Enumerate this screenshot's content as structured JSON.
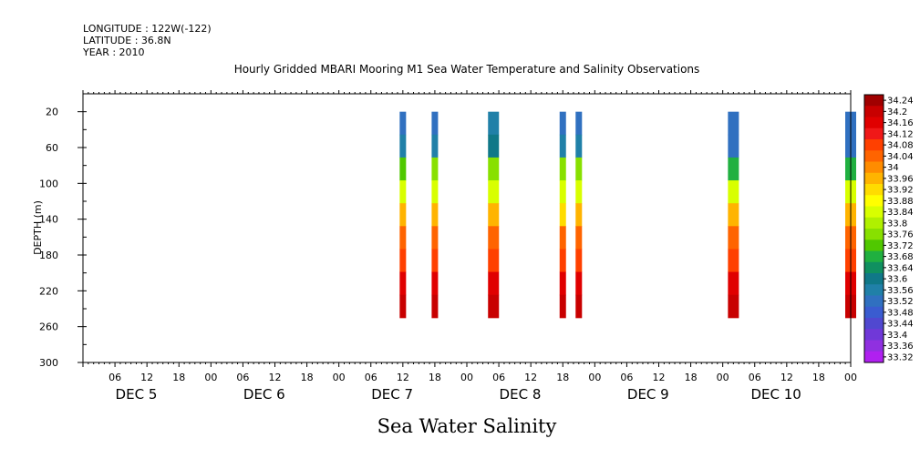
{
  "header": {
    "longitude": "LONGITUDE : 122W(-122)",
    "latitude": "LATITUDE : 36.8N",
    "year": "YEAR : 2010"
  },
  "chart_data": {
    "type": "heatmap",
    "title": "Hourly Gridded MBARI Mooring M1 Sea Water Temperature and Salinity Observations",
    "ylabel": "DEPTH (m)",
    "xlabel": "",
    "bottom_label": "Sea Water Salinity",
    "ylim": [
      300,
      0
    ],
    "y_ticks": [
      20,
      60,
      100,
      140,
      180,
      220,
      260,
      300
    ],
    "x_range_hours": [
      0,
      144
    ],
    "x_hour_ticks": [
      "06",
      "12",
      "18",
      "00",
      "06",
      "12",
      "18",
      "00",
      "06",
      "12",
      "18",
      "00",
      "06",
      "12",
      "18",
      "00",
      "06",
      "12",
      "18",
      "00",
      "06",
      "12",
      "18",
      "00"
    ],
    "x_date_labels": [
      "DEC  5",
      "DEC  6",
      "DEC  7",
      "DEC  8",
      "DEC  9",
      "DEC  10"
    ],
    "depth_range": [
      20,
      250
    ],
    "profiles": [
      {
        "time": "DEC 7 12",
        "salinity": [
          33.5,
          33.56,
          33.72,
          33.86,
          33.96,
          34.02,
          34.08,
          34.16,
          34.22
        ]
      },
      {
        "time": "DEC 7 18",
        "salinity": [
          33.5,
          33.58,
          33.74,
          33.86,
          33.96,
          34.02,
          34.08,
          34.16,
          34.22
        ]
      },
      {
        "time": "DEC 8 05",
        "salinity": [
          33.56,
          33.62,
          33.76,
          33.86,
          33.96,
          34.02,
          34.08,
          34.16,
          34.22
        ]
      },
      {
        "time": "DEC 8 18",
        "salinity": [
          33.5,
          33.58,
          33.76,
          33.86,
          33.94,
          34.02,
          34.08,
          34.16,
          34.22
        ]
      },
      {
        "time": "DEC 8 21",
        "salinity": [
          33.5,
          33.56,
          33.74,
          33.86,
          33.96,
          34.02,
          34.08,
          34.16,
          34.22
        ]
      },
      {
        "time": "DEC 10 02",
        "salinity": [
          33.5,
          33.54,
          33.68,
          33.84,
          33.96,
          34.04,
          34.08,
          34.16,
          34.22
        ]
      },
      {
        "time": "DEC 11 00",
        "salinity": [
          33.5,
          33.54,
          33.68,
          33.84,
          33.96,
          34.04,
          34.08,
          34.16,
          34.22
        ]
      }
    ],
    "colorbar": {
      "levels": [
        "34.24",
        "34.2",
        "34.16",
        "34.12",
        "34.08",
        "34.04",
        "34",
        "33.96",
        "33.92",
        "33.88",
        "33.84",
        "33.8",
        "33.76",
        "33.72",
        "33.68",
        "33.64",
        "33.6",
        "33.56",
        "33.52",
        "33.48",
        "33.44",
        "33.4",
        "33.36",
        "33.32"
      ],
      "colors": [
        "#a00000",
        "#c80000",
        "#e00000",
        "#f01818",
        "#ff4000",
        "#ff6400",
        "#ff8c00",
        "#ffb400",
        "#ffdc00",
        "#ffff00",
        "#d8ff00",
        "#b0f000",
        "#88e000",
        "#50c800",
        "#20b040",
        "#109060",
        "#107888",
        "#2080a8",
        "#3070c0",
        "#3a5cd0",
        "#5048d0",
        "#7038d8",
        "#9030e0",
        "#b020f0"
      ]
    }
  }
}
